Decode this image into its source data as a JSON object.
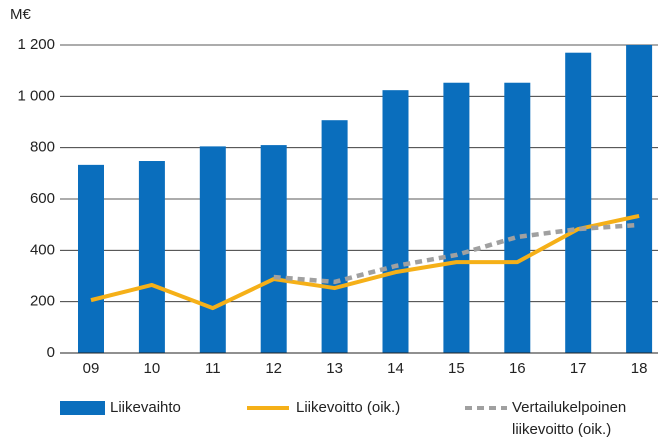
{
  "chart_data": {
    "type": "bar_line",
    "y_label": "M€",
    "categories": [
      "09",
      "10",
      "11",
      "12",
      "13",
      "14",
      "15",
      "16",
      "17",
      "18"
    ],
    "ylim": [
      0,
      1200
    ],
    "yticks": [
      0,
      200,
      400,
      600,
      800,
      {
        "value": 1000,
        "label": "1 000"
      },
      {
        "value": 1200,
        "label": "1 200"
      }
    ],
    "grid": true,
    "series": [
      {
        "name": "Liikevaihto",
        "kind": "bar",
        "color": "#0a6ebd",
        "values": [
          733,
          748,
          805,
          810,
          907,
          1024,
          1053,
          1053,
          1170,
          1200
        ]
      },
      {
        "name": "Liikevoitto (oik.)",
        "kind": "line",
        "color": "#f5b018",
        "values": [
          206,
          265,
          175,
          288,
          253,
          315,
          354,
          354,
          483,
          534
        ]
      },
      {
        "name": "Vertailukelpoinen liikevoitto (oik.)",
        "kind": "dashed",
        "color": "#a0a0a0",
        "values": [
          null,
          null,
          null,
          296,
          277,
          339,
          382,
          452,
          483,
          499
        ]
      }
    ]
  }
}
